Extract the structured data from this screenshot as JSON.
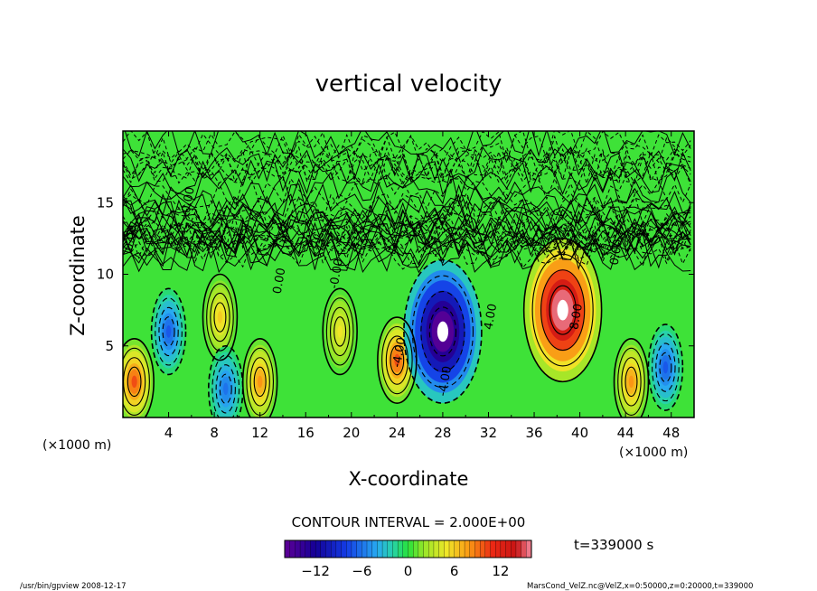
{
  "chart_data": {
    "type": "heatmap",
    "title": "vertical velocity",
    "xlabel": "X-coordinate",
    "ylabel": "Z-coordinate",
    "x_unit_left": "(×1000 m)",
    "x_unit_right": "(×1000 m)",
    "xlim": [
      0,
      50
    ],
    "ylim": [
      0,
      20
    ],
    "x_ticks": [
      4,
      8,
      12,
      16,
      20,
      24,
      28,
      32,
      36,
      40,
      44,
      48
    ],
    "y_ticks": [
      5,
      10,
      15
    ],
    "contour_interval_text": "CONTOUR INTERVAL = 2.000E+00",
    "time_text": "t=339000 s",
    "colorbar": {
      "min": -16,
      "max": 16,
      "ticks": [
        -12,
        -6,
        0,
        6,
        12
      ]
    },
    "contour_labels": [
      {
        "text": "0.00",
        "x": 1.0,
        "z": 12.5
      },
      {
        "text": "-0.00",
        "x": 6.0,
        "z": 15.0
      },
      {
        "text": "0.00",
        "x": 14.0,
        "z": 9.5
      },
      {
        "text": "-0.00",
        "x": 19.0,
        "z": 10.0
      },
      {
        "text": "-4.00",
        "x": 24.5,
        "z": 4.5
      },
      {
        "text": "-4.00",
        "x": 28.5,
        "z": 2.5
      },
      {
        "text": "4.00",
        "x": 32.5,
        "z": 7.0
      },
      {
        "text": "8.00",
        "x": 40.0,
        "z": 7.0
      },
      {
        "text": "0.00",
        "x": 43.5,
        "z": 11.5
      }
    ],
    "features": [
      {
        "sign": "up",
        "x": 38.5,
        "z": 7.5,
        "peak": 18
      },
      {
        "sign": "up",
        "x": 24.0,
        "z": 4.0,
        "peak": 10
      },
      {
        "sign": "up",
        "x": 1.0,
        "z": 2.5,
        "peak": 10
      },
      {
        "sign": "up",
        "x": 12.0,
        "z": 2.5,
        "peak": 8
      },
      {
        "sign": "up",
        "x": 44.5,
        "z": 2.5,
        "peak": 8
      },
      {
        "sign": "up",
        "x": 8.5,
        "z": 7.0,
        "peak": 6
      },
      {
        "sign": "up",
        "x": 19.0,
        "z": 6.0,
        "peak": 5
      },
      {
        "sign": "down",
        "x": 28.0,
        "z": 6.0,
        "peak": -18
      },
      {
        "sign": "down",
        "x": 4.0,
        "z": 6.0,
        "peak": -7
      },
      {
        "sign": "down",
        "x": 9.0,
        "z": 2.0,
        "peak": -6
      },
      {
        "sign": "down",
        "x": 47.5,
        "z": 3.5,
        "peak": -7
      }
    ]
  },
  "footer": {
    "left": "/usr/bin/gpview   2008-12-17",
    "right": "MarsCond_VelZ.nc@VelZ,x=0:50000,z=0:20000,t=339000"
  },
  "colors": {
    "background": "#ffffff",
    "axes": "#000000"
  }
}
